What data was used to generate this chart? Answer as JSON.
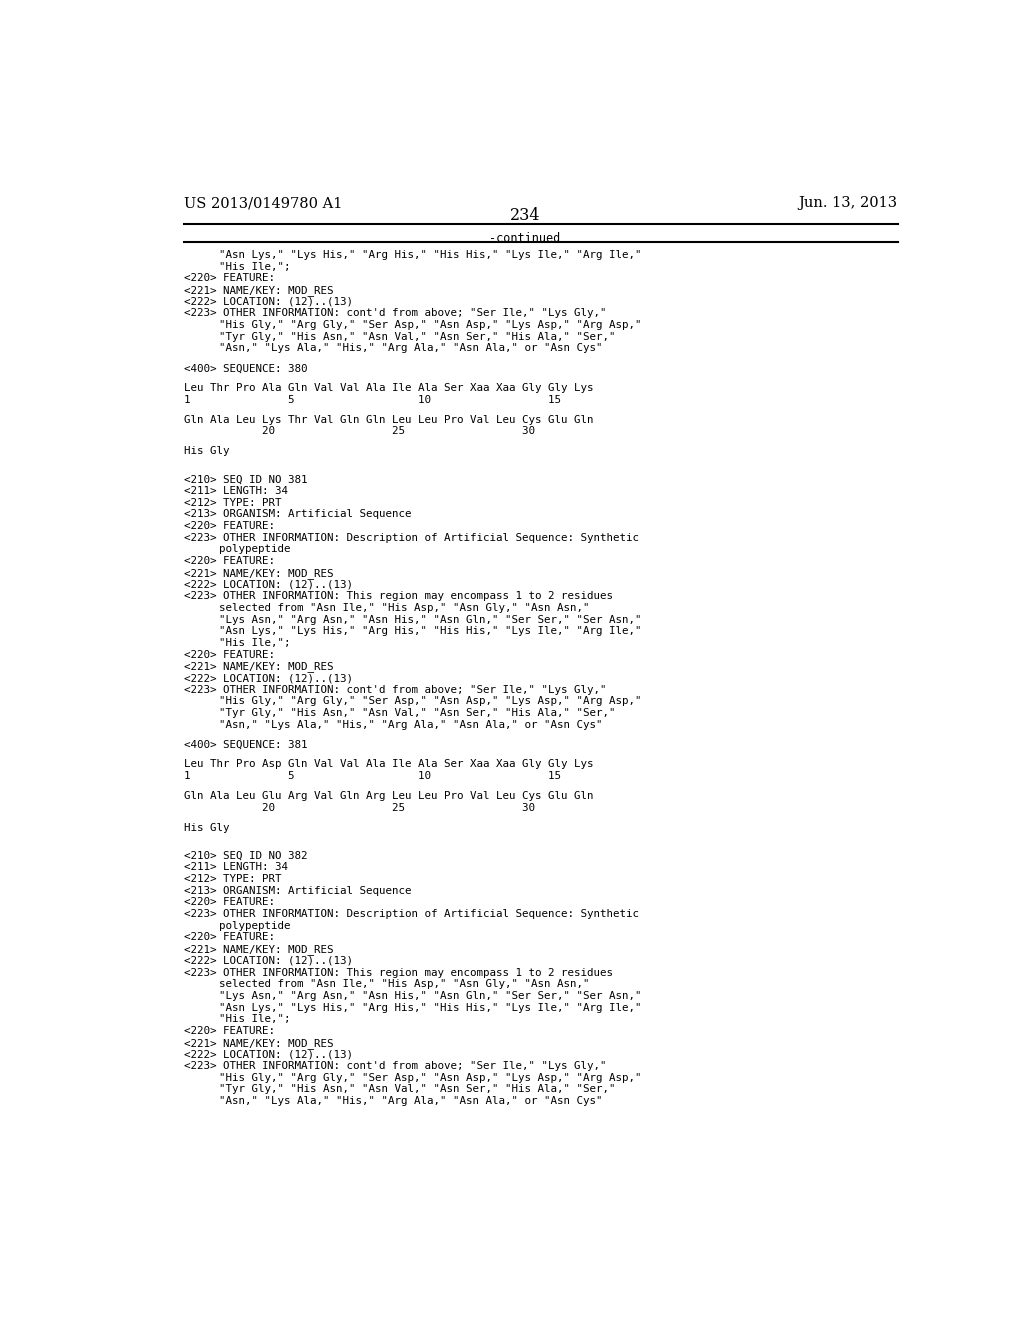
{
  "header_left": "US 2013/0149780 A1",
  "header_right": "Jun. 13, 2013",
  "page_number": "234",
  "continued_label": "-continued",
  "background_color": "#ffffff",
  "text_color": "#000000",
  "font_size_header": 10.5,
  "font_size_body": 8.5,
  "lines": [
    {
      "indent": 1,
      "text": "\"Asn Lys,\" \"Lys His,\" \"Arg His,\" \"His His,\" \"Lys Ile,\" \"Arg Ile,\""
    },
    {
      "indent": 1,
      "text": "\"His Ile,\";"
    },
    {
      "indent": 0,
      "text": "<220> FEATURE:"
    },
    {
      "indent": 0,
      "text": "<221> NAME/KEY: MOD_RES"
    },
    {
      "indent": 0,
      "text": "<222> LOCATION: (12)..(13)"
    },
    {
      "indent": 0,
      "text": "<223> OTHER INFORMATION: cont'd from above; \"Ser Ile,\" \"Lys Gly,\""
    },
    {
      "indent": 1,
      "text": "\"His Gly,\" \"Arg Gly,\" \"Ser Asp,\" \"Asn Asp,\" \"Lys Asp,\" \"Arg Asp,\""
    },
    {
      "indent": 1,
      "text": "\"Tyr Gly,\" \"His Asn,\" \"Asn Val,\" \"Asn Ser,\" \"His Ala,\" \"Ser,\""
    },
    {
      "indent": 1,
      "text": "\"Asn,\" \"Lys Ala,\" \"His,\" \"Arg Ala,\" \"Asn Ala,\" or \"Asn Cys\""
    },
    {
      "indent": -1,
      "text": ""
    },
    {
      "indent": 0,
      "text": "<400> SEQUENCE: 380"
    },
    {
      "indent": -1,
      "text": ""
    },
    {
      "indent": 0,
      "text": "Leu Thr Pro Ala Gln Val Val Ala Ile Ala Ser Xaa Xaa Gly Gly Lys"
    },
    {
      "indent": 0,
      "text": "1               5                   10                  15"
    },
    {
      "indent": -1,
      "text": ""
    },
    {
      "indent": 0,
      "text": "Gln Ala Leu Lys Thr Val Gln Gln Leu Leu Pro Val Leu Cys Glu Gln"
    },
    {
      "indent": 0,
      "text": "            20                  25                  30"
    },
    {
      "indent": -1,
      "text": ""
    },
    {
      "indent": 0,
      "text": "His Gly"
    },
    {
      "indent": -1,
      "text": ""
    },
    {
      "indent": -1,
      "text": ""
    },
    {
      "indent": 0,
      "text": "<210> SEQ ID NO 381"
    },
    {
      "indent": 0,
      "text": "<211> LENGTH: 34"
    },
    {
      "indent": 0,
      "text": "<212> TYPE: PRT"
    },
    {
      "indent": 0,
      "text": "<213> ORGANISM: Artificial Sequence"
    },
    {
      "indent": 0,
      "text": "<220> FEATURE:"
    },
    {
      "indent": 0,
      "text": "<223> OTHER INFORMATION: Description of Artificial Sequence: Synthetic"
    },
    {
      "indent": 1,
      "text": "polypeptide"
    },
    {
      "indent": 0,
      "text": "<220> FEATURE:"
    },
    {
      "indent": 0,
      "text": "<221> NAME/KEY: MOD_RES"
    },
    {
      "indent": 0,
      "text": "<222> LOCATION: (12)..(13)"
    },
    {
      "indent": 0,
      "text": "<223> OTHER INFORMATION: This region may encompass 1 to 2 residues"
    },
    {
      "indent": 1,
      "text": "selected from \"Asn Ile,\" \"His Asp,\" \"Asn Gly,\" \"Asn Asn,\""
    },
    {
      "indent": 1,
      "text": "\"Lys Asn,\" \"Arg Asn,\" \"Asn His,\" \"Asn Gln,\" \"Ser Ser,\" \"Ser Asn,\""
    },
    {
      "indent": 1,
      "text": "\"Asn Lys,\" \"Lys His,\" \"Arg His,\" \"His His,\" \"Lys Ile,\" \"Arg Ile,\""
    },
    {
      "indent": 1,
      "text": "\"His Ile,\";"
    },
    {
      "indent": 0,
      "text": "<220> FEATURE:"
    },
    {
      "indent": 0,
      "text": "<221> NAME/KEY: MOD_RES"
    },
    {
      "indent": 0,
      "text": "<222> LOCATION: (12)..(13)"
    },
    {
      "indent": 0,
      "text": "<223> OTHER INFORMATION: cont'd from above; \"Ser Ile,\" \"Lys Gly,\""
    },
    {
      "indent": 1,
      "text": "\"His Gly,\" \"Arg Gly,\" \"Ser Asp,\" \"Asn Asp,\" \"Lys Asp,\" \"Arg Asp,\""
    },
    {
      "indent": 1,
      "text": "\"Tyr Gly,\" \"His Asn,\" \"Asn Val,\" \"Asn Ser,\" \"His Ala,\" \"Ser,\""
    },
    {
      "indent": 1,
      "text": "\"Asn,\" \"Lys Ala,\" \"His,\" \"Arg Ala,\" \"Asn Ala,\" or \"Asn Cys\""
    },
    {
      "indent": -1,
      "text": ""
    },
    {
      "indent": 0,
      "text": "<400> SEQUENCE: 381"
    },
    {
      "indent": -1,
      "text": ""
    },
    {
      "indent": 0,
      "text": "Leu Thr Pro Asp Gln Val Val Ala Ile Ala Ser Xaa Xaa Gly Gly Lys"
    },
    {
      "indent": 0,
      "text": "1               5                   10                  15"
    },
    {
      "indent": -1,
      "text": ""
    },
    {
      "indent": 0,
      "text": "Gln Ala Leu Glu Arg Val Gln Arg Leu Leu Pro Val Leu Cys Glu Gln"
    },
    {
      "indent": 0,
      "text": "            20                  25                  30"
    },
    {
      "indent": -1,
      "text": ""
    },
    {
      "indent": 0,
      "text": "His Gly"
    },
    {
      "indent": -1,
      "text": ""
    },
    {
      "indent": -1,
      "text": ""
    },
    {
      "indent": 0,
      "text": "<210> SEQ ID NO 382"
    },
    {
      "indent": 0,
      "text": "<211> LENGTH: 34"
    },
    {
      "indent": 0,
      "text": "<212> TYPE: PRT"
    },
    {
      "indent": 0,
      "text": "<213> ORGANISM: Artificial Sequence"
    },
    {
      "indent": 0,
      "text": "<220> FEATURE:"
    },
    {
      "indent": 0,
      "text": "<223> OTHER INFORMATION: Description of Artificial Sequence: Synthetic"
    },
    {
      "indent": 1,
      "text": "polypeptide"
    },
    {
      "indent": 0,
      "text": "<220> FEATURE:"
    },
    {
      "indent": 0,
      "text": "<221> NAME/KEY: MOD_RES"
    },
    {
      "indent": 0,
      "text": "<222> LOCATION: (12)..(13)"
    },
    {
      "indent": 0,
      "text": "<223> OTHER INFORMATION: This region may encompass 1 to 2 residues"
    },
    {
      "indent": 1,
      "text": "selected from \"Asn Ile,\" \"His Asp,\" \"Asn Gly,\" \"Asn Asn,\""
    },
    {
      "indent": 1,
      "text": "\"Lys Asn,\" \"Arg Asn,\" \"Asn His,\" \"Asn Gln,\" \"Ser Ser,\" \"Ser Asn,\""
    },
    {
      "indent": 1,
      "text": "\"Asn Lys,\" \"Lys His,\" \"Arg His,\" \"His His,\" \"Lys Ile,\" \"Arg Ile,\""
    },
    {
      "indent": 1,
      "text": "\"His Ile,\";"
    },
    {
      "indent": 0,
      "text": "<220> FEATURE:"
    },
    {
      "indent": 0,
      "text": "<221> NAME/KEY: MOD_RES"
    },
    {
      "indent": 0,
      "text": "<222> LOCATION: (12)..(13)"
    },
    {
      "indent": 0,
      "text": "<223> OTHER INFORMATION: cont'd from above; \"Ser Ile,\" \"Lys Gly,\""
    },
    {
      "indent": 1,
      "text": "\"His Gly,\" \"Arg Gly,\" \"Ser Asp,\" \"Asn Asp,\" \"Lys Asp,\" \"Arg Asp,\""
    },
    {
      "indent": 1,
      "text": "\"Tyr Gly,\" \"His Asn,\" \"Asn Val,\" \"Asn Ser,\" \"His Ala,\" \"Ser,\""
    },
    {
      "indent": 1,
      "text": "\"Asn,\" \"Lys Ala,\" \"His,\" \"Arg Ala,\" \"Asn Ala,\" or \"Asn Cys\""
    }
  ]
}
